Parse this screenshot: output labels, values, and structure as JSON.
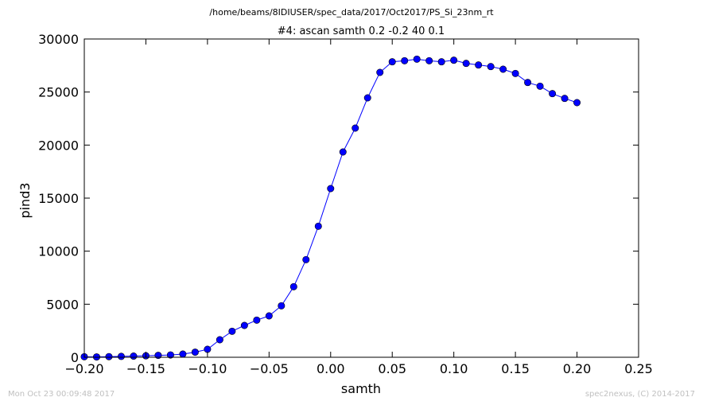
{
  "header": {
    "suptitle": "/home/beams/8IDIUSER/spec_data/2017/Oct2017/PS_Si_23nm_rt"
  },
  "footer": {
    "timestamp": "Mon Oct 23 00:09:48 2017",
    "credit": "spec2nexus, (C) 2014-2017"
  },
  "colors": {
    "series": "#0000ff",
    "axes": "#000000",
    "footer_text": "#c0c0c0"
  },
  "chart_data": {
    "type": "line",
    "title": "#4: ascan  samth 0.2 -0.2  40 0.1",
    "xlabel": "samth",
    "ylabel": "pind3",
    "xlim": [
      -0.2,
      0.25
    ],
    "ylim": [
      0,
      30000
    ],
    "xticks": [
      -0.2,
      -0.15,
      -0.1,
      -0.05,
      0.0,
      0.05,
      0.1,
      0.15,
      0.2,
      0.25
    ],
    "xtick_labels": [
      "−0.20",
      "−0.15",
      "−0.10",
      "−0.05",
      "0.00",
      "0.05",
      "0.10",
      "0.15",
      "0.20",
      "0.25"
    ],
    "yticks": [
      0,
      5000,
      10000,
      15000,
      20000,
      25000,
      30000
    ],
    "ytick_labels": [
      "0",
      "5000",
      "10000",
      "15000",
      "20000",
      "25000",
      "30000"
    ],
    "grid": false,
    "marker": "circle",
    "series": [
      {
        "x": [
          -0.2,
          -0.19,
          -0.18,
          -0.17,
          -0.16,
          -0.15,
          -0.14,
          -0.13,
          -0.12,
          -0.11,
          -0.1,
          -0.09,
          -0.08,
          -0.07,
          -0.06,
          -0.05,
          -0.04,
          -0.03,
          -0.02,
          -0.01,
          0.0,
          0.01,
          0.02,
          0.03,
          0.04,
          0.05,
          0.06,
          0.07,
          0.08,
          0.09,
          0.1,
          0.11,
          0.12,
          0.13,
          0.14,
          0.15,
          0.16,
          0.17,
          0.18,
          0.19,
          0.2
        ],
        "y": [
          50,
          30,
          60,
          80,
          110,
          140,
          180,
          220,
          300,
          480,
          750,
          1650,
          2450,
          3000,
          3500,
          3900,
          4850,
          6650,
          9200,
          12350,
          15900,
          19350,
          21600,
          24450,
          26850,
          27850,
          27950,
          28100,
          27950,
          27850,
          28000,
          27700,
          27550,
          27400,
          27150,
          26750,
          25900,
          25550,
          24850,
          24400,
          24000
        ]
      }
    ]
  }
}
